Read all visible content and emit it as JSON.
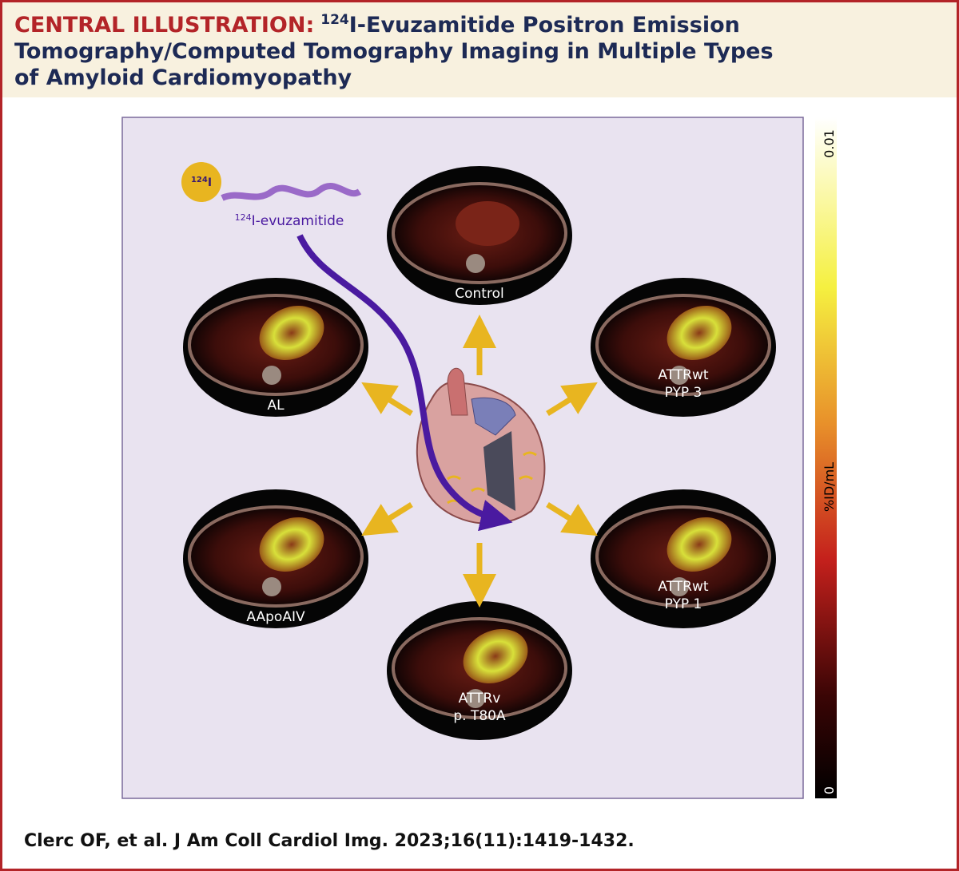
{
  "header": {
    "label": "CENTRAL ILLUSTRATION:",
    "title_sup": "124",
    "title_lines": [
      "I-Evuzamitide Positron Emission",
      "Tomography/Computed Tomography Imaging in Multiple Types",
      "of Amyloid Cardiomyopathy"
    ]
  },
  "tracer": {
    "badge_sup": "124",
    "badge": "I",
    "label_sup": "124",
    "label": "I-evuzamitide"
  },
  "nodes": [
    {
      "label": [
        "Control"
      ]
    },
    {
      "label": [
        "AL"
      ]
    },
    {
      "label": [
        "ATTRwt",
        "PYP 3"
      ]
    },
    {
      "label": [
        "AApoAIV"
      ]
    },
    {
      "label": [
        "ATTRwt",
        "PYP 1"
      ]
    },
    {
      "label": [
        "ATTRv",
        "p. T80A"
      ]
    }
  ],
  "colorbar": {
    "max": "0.01",
    "unit": "%ID/mL",
    "min": "0"
  },
  "citation": "Clerc OF, et al. J Am Coll Cardiol Img. 2023;16(11):1419-1432."
}
